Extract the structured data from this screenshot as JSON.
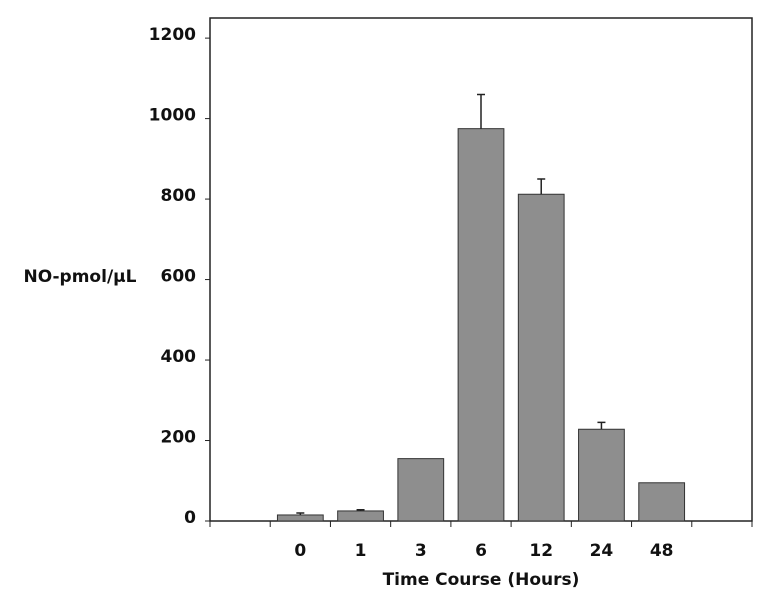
{
  "chart_data": {
    "type": "bar",
    "x_label": "Time Course (Hours)",
    "y_label": "NO-pmol/µL",
    "categories": [
      null,
      "0",
      "1",
      "3",
      "6",
      "12",
      "24",
      "48",
      null
    ],
    "values": [
      null,
      15,
      25,
      155,
      975,
      812,
      228,
      95,
      null
    ],
    "errors": [
      null,
      5,
      3,
      null,
      85,
      38,
      17,
      null,
      null
    ],
    "color": "#8e8e8e",
    "ylim": [
      0,
      1250
    ],
    "yticks": [
      0,
      200,
      400,
      600,
      800,
      1000,
      1200
    ],
    "grid": false
  }
}
